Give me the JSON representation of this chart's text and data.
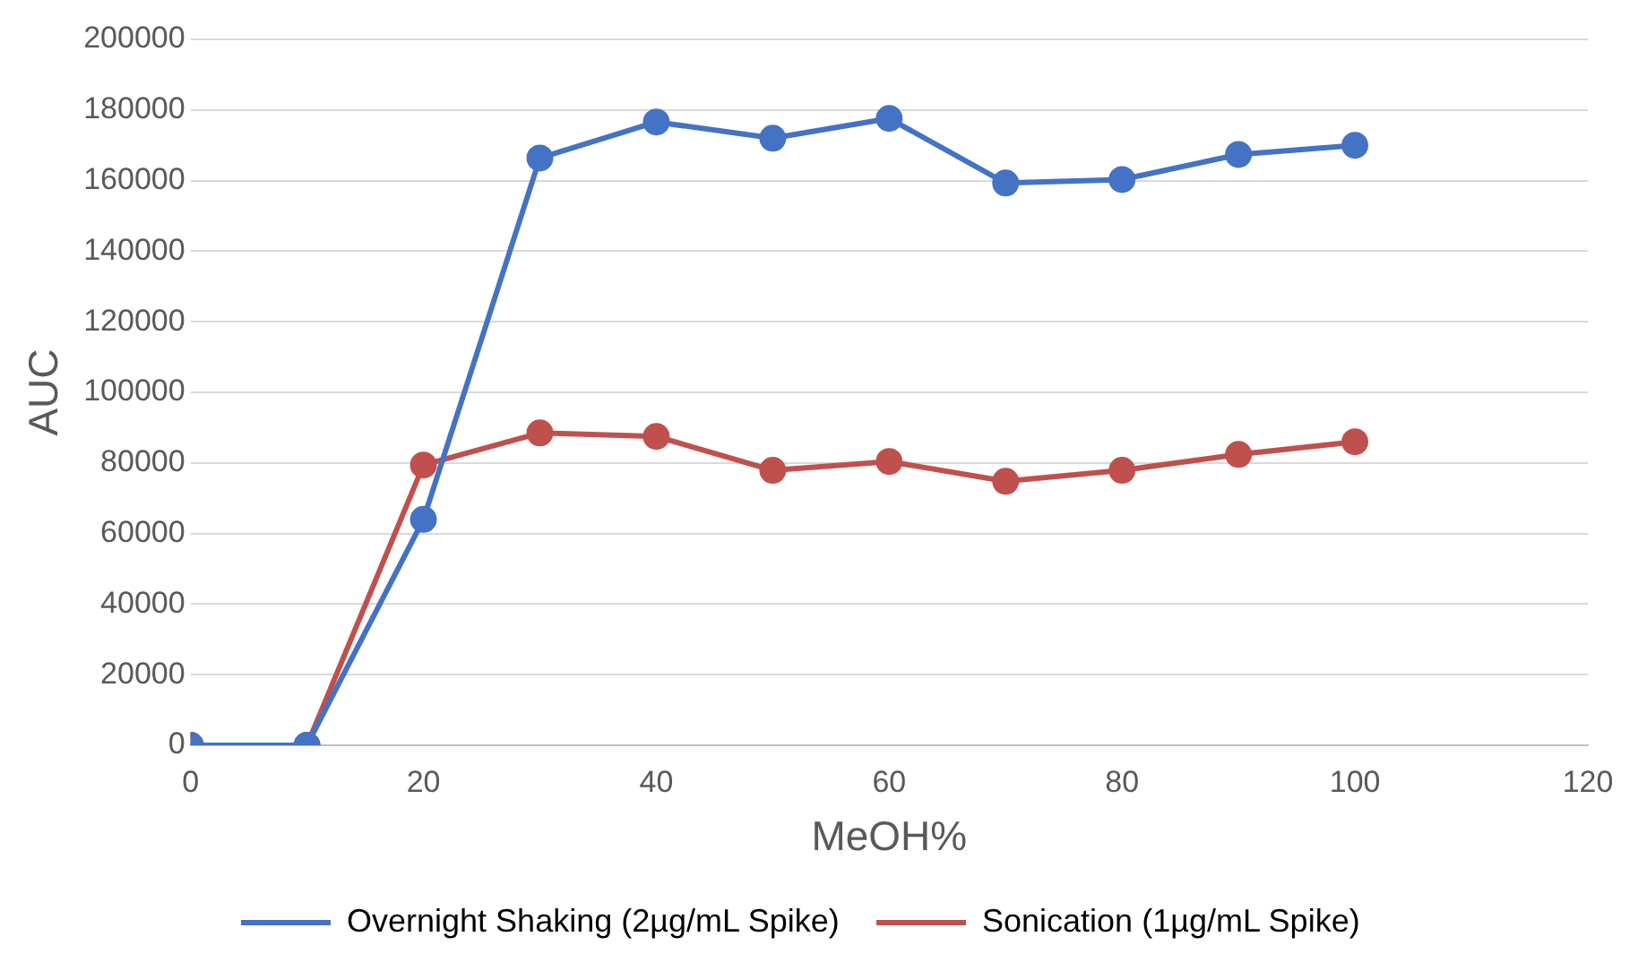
{
  "chart_data": {
    "type": "line",
    "xlabel": "MeOH%",
    "ylabel": "AUC",
    "x": [
      0,
      10,
      20,
      30,
      40,
      50,
      60,
      70,
      80,
      90,
      100
    ],
    "series": [
      {
        "name": "Overnight Shaking (2µg/mL Spike)",
        "color": "#4472c4",
        "values": [
          0,
          0,
          64000,
          166400,
          176600,
          172000,
          177600,
          159300,
          160300,
          167400,
          170000
        ]
      },
      {
        "name": "Sonication (1µg/mL Spike)",
        "color": "#c0504d",
        "values": [
          0,
          0,
          79400,
          88500,
          87500,
          77900,
          80400,
          74800,
          77900,
          82400,
          86000
        ]
      }
    ],
    "xlim": [
      0,
      120
    ],
    "xticks": [
      0,
      20,
      40,
      60,
      80,
      100,
      120
    ],
    "ylim": [
      0,
      200000
    ],
    "yticks": [
      0,
      20000,
      40000,
      60000,
      80000,
      100000,
      120000,
      140000,
      160000,
      180000,
      200000
    ],
    "grid": "y",
    "legend": "bottom",
    "marker": "circle",
    "line_style": "solid"
  }
}
